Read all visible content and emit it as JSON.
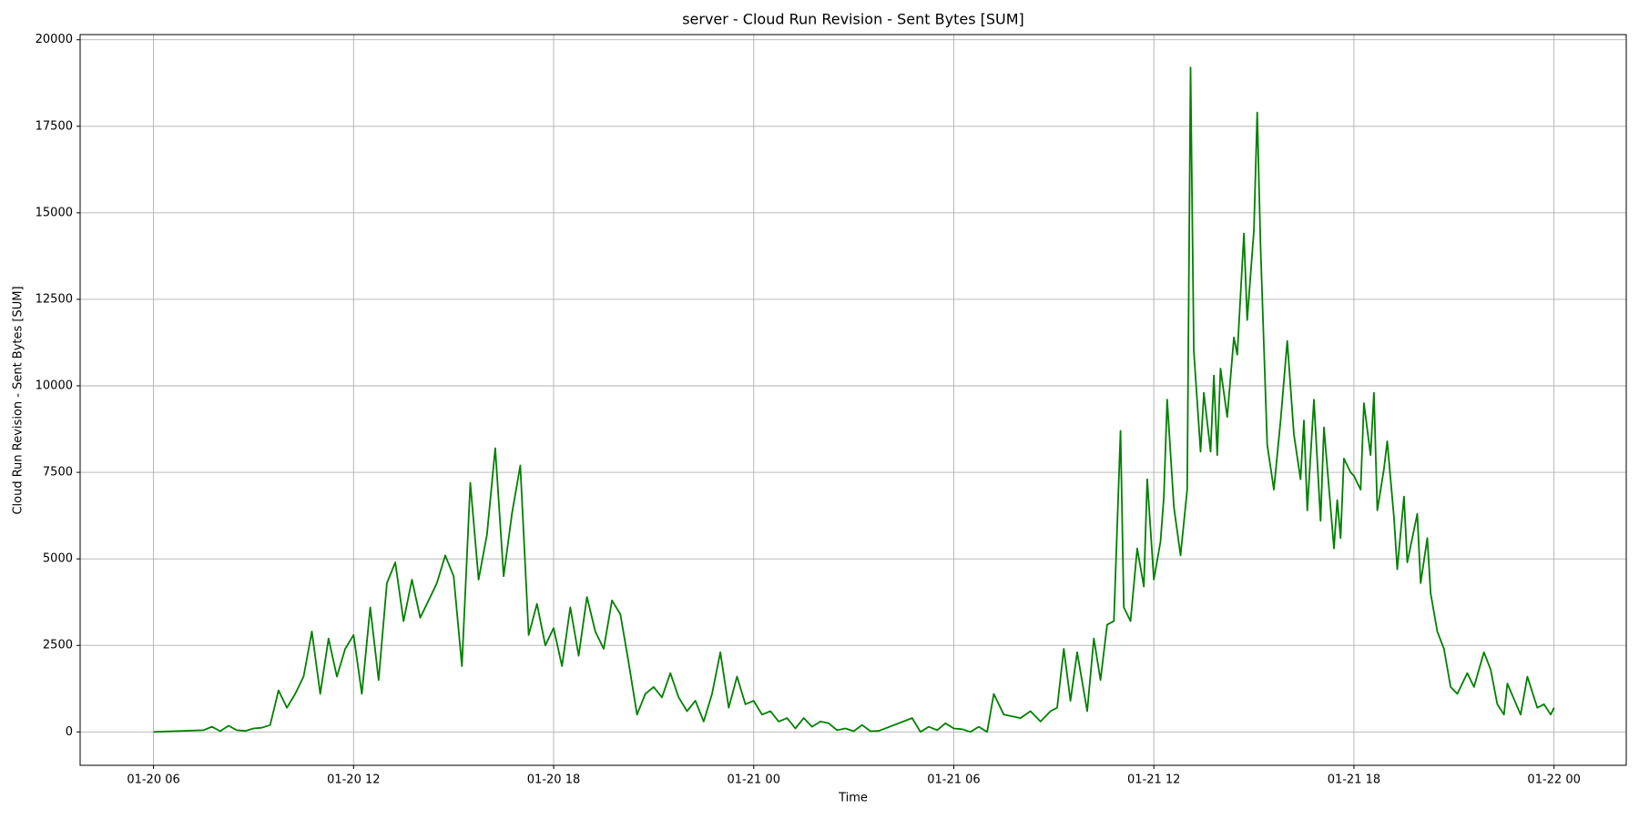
{
  "chart_data": {
    "type": "line",
    "title": "server - Cloud Run Revision - Sent Bytes [SUM]",
    "x_label": "Time",
    "y_label": "Cloud Run Revision - Sent Bytes [SUM]",
    "grid": true,
    "xlim": [
      "01-20 03:48",
      "01-22 02:10"
    ],
    "xticks": [
      {
        "value": "01-20 06:00",
        "label": "01-20 06"
      },
      {
        "value": "01-20 12:00",
        "label": "01-20 12"
      },
      {
        "value": "01-20 18:00",
        "label": "01-20 18"
      },
      {
        "value": "01-21 00:00",
        "label": "01-21 00"
      },
      {
        "value": "01-21 06:00",
        "label": "01-21 06"
      },
      {
        "value": "01-21 12:00",
        "label": "01-21 12"
      },
      {
        "value": "01-21 18:00",
        "label": "01-21 18"
      },
      {
        "value": "01-22 00:00",
        "label": "01-22 00"
      }
    ],
    "ylim": [
      -965,
      20150
    ],
    "yticks": [
      0,
      2500,
      5000,
      7500,
      10000,
      12500,
      15000,
      17500,
      20000
    ],
    "x": [
      "01-20 06:00",
      "01-20 07:30",
      "01-20 07:45",
      "01-20 08:00",
      "01-20 08:15",
      "01-20 08:30",
      "01-20 08:45",
      "01-20 09:00",
      "01-20 09:15",
      "01-20 09:30",
      "01-20 09:45",
      "01-20 10:00",
      "01-20 10:15",
      "01-20 10:30",
      "01-20 10:45",
      "01-20 11:00",
      "01-20 11:15",
      "01-20 11:30",
      "01-20 11:45",
      "01-20 12:00",
      "01-20 12:15",
      "01-20 12:30",
      "01-20 12:45",
      "01-20 13:00",
      "01-20 13:15",
      "01-20 13:30",
      "01-20 13:45",
      "01-20 14:00",
      "01-20 14:15",
      "01-20 14:30",
      "01-20 14:45",
      "01-20 15:00",
      "01-20 15:15",
      "01-20 15:30",
      "01-20 15:45",
      "01-20 16:00",
      "01-20 16:15",
      "01-20 16:30",
      "01-20 16:45",
      "01-20 17:00",
      "01-20 17:15",
      "01-20 17:30",
      "01-20 17:45",
      "01-20 18:00",
      "01-20 18:15",
      "01-20 18:30",
      "01-20 18:45",
      "01-20 19:00",
      "01-20 19:15",
      "01-20 19:30",
      "01-20 19:45",
      "01-20 20:00",
      "01-20 20:15",
      "01-20 20:30",
      "01-20 20:45",
      "01-20 21:00",
      "01-20 21:15",
      "01-20 21:30",
      "01-20 21:45",
      "01-20 22:00",
      "01-20 22:15",
      "01-20 22:30",
      "01-20 22:45",
      "01-20 23:00",
      "01-20 23:15",
      "01-20 23:30",
      "01-20 23:45",
      "01-21 00:00",
      "01-21 00:15",
      "01-21 00:30",
      "01-21 00:45",
      "01-21 01:00",
      "01-21 01:15",
      "01-21 01:30",
      "01-21 01:45",
      "01-21 02:00",
      "01-21 02:15",
      "01-21 02:30",
      "01-21 02:45",
      "01-21 03:00",
      "01-21 03:15",
      "01-21 03:30",
      "01-21 03:45",
      "01-21 04:45",
      "01-21 05:00",
      "01-21 05:15",
      "01-21 05:30",
      "01-21 05:45",
      "01-21 06:00",
      "01-21 06:15",
      "01-21 06:30",
      "01-21 06:45",
      "01-21 07:00",
      "01-21 07:12",
      "01-21 07:30",
      "01-21 08:00",
      "01-21 08:18",
      "01-21 08:36",
      "01-21 08:54",
      "01-21 09:06",
      "01-21 09:18",
      "01-21 09:30",
      "01-21 09:42",
      "01-21 10:00",
      "01-21 10:12",
      "01-21 10:24",
      "01-21 10:36",
      "01-21 10:48",
      "01-21 11:00",
      "01-21 11:06",
      "01-21 11:18",
      "01-21 11:30",
      "01-21 11:42",
      "01-21 11:48",
      "01-21 12:00",
      "01-21 12:12",
      "01-21 12:18",
      "01-21 12:24",
      "01-21 12:36",
      "01-21 12:48",
      "01-21 13:00",
      "01-21 13:06",
      "01-21 13:12",
      "01-21 13:24",
      "01-21 13:30",
      "01-21 13:42",
      "01-21 13:48",
      "01-21 13:54",
      "01-21 14:00",
      "01-21 14:12",
      "01-21 14:24",
      "01-21 14:30",
      "01-21 14:42",
      "01-21 14:48",
      "01-21 15:00",
      "01-21 15:06",
      "01-21 15:12",
      "01-21 15:24",
      "01-21 15:36",
      "01-21 15:48",
      "01-21 16:00",
      "01-21 16:12",
      "01-21 16:24",
      "01-21 16:30",
      "01-21 16:36",
      "01-21 16:48",
      "01-21 17:00",
      "01-21 17:06",
      "01-21 17:24",
      "01-21 17:30",
      "01-21 17:36",
      "01-21 17:42",
      "01-21 17:54",
      "01-21 18:00",
      "01-21 18:12",
      "01-21 18:18",
      "01-21 18:30",
      "01-21 18:36",
      "01-21 18:42",
      "01-21 18:54",
      "01-21 19:00",
      "01-21 19:12",
      "01-21 19:18",
      "01-21 19:30",
      "01-21 19:36",
      "01-21 19:54",
      "01-21 20:00",
      "01-21 20:12",
      "01-21 20:18",
      "01-21 20:30",
      "01-21 20:42",
      "01-21 20:54",
      "01-21 21:06",
      "01-21 21:24",
      "01-21 21:36",
      "01-21 21:54",
      "01-21 22:06",
      "01-21 22:18",
      "01-21 22:30",
      "01-21 22:36",
      "01-21 23:00",
      "01-21 23:12",
      "01-21 23:30",
      "01-21 23:42",
      "01-21 23:54",
      "01-22 00:00"
    ],
    "series": [
      {
        "name": "Cloud Run Revision - Sent Bytes [SUM]",
        "color": "#008000",
        "values": [
          0,
          50,
          150,
          20,
          180,
          50,
          30,
          100,
          120,
          200,
          1200,
          700,
          1100,
          1600,
          2900,
          1100,
          2700,
          1600,
          2400,
          2800,
          1100,
          3600,
          1500,
          4300,
          4900,
          3200,
          4400,
          3300,
          3800,
          4300,
          5100,
          4500,
          1900,
          7200,
          4400,
          5700,
          8200,
          4500,
          6300,
          7700,
          2800,
          3700,
          2500,
          3000,
          1900,
          3600,
          2200,
          3900,
          2900,
          2400,
          3800,
          3400,
          2000,
          500,
          1100,
          1300,
          1000,
          1700,
          1000,
          600,
          900,
          300,
          1100,
          2300,
          700,
          1600,
          800,
          900,
          500,
          600,
          300,
          400,
          100,
          400,
          150,
          300,
          250,
          50,
          100,
          20,
          200,
          20,
          30,
          400,
          0,
          150,
          50,
          250,
          100,
          80,
          0,
          150,
          0,
          1100,
          500,
          400,
          600,
          300,
          600,
          700,
          2400,
          900,
          2300,
          600,
          2700,
          1500,
          3100,
          3200,
          8700,
          3600,
          3200,
          5300,
          4200,
          7300,
          4400,
          5500,
          6800,
          9600,
          6500,
          5100,
          7000,
          19200,
          11000,
          8100,
          9800,
          8100,
          10300,
          8000,
          10500,
          9100,
          11400,
          10900,
          14400,
          11900,
          14500,
          17900,
          14000,
          8300,
          7000,
          9000,
          11300,
          8600,
          7300,
          9000,
          6400,
          9600,
          6100,
          8800,
          5300,
          6700,
          5600,
          7900,
          7500,
          7400,
          7000,
          9500,
          8000,
          9800,
          6400,
          7600,
          8400,
          6200,
          4700,
          6800,
          4900,
          6300,
          4300,
          5600,
          4000,
          2900,
          2400,
          1300,
          1100,
          1700,
          1300,
          2300,
          1800,
          800,
          500,
          1400,
          500,
          1600,
          700,
          800,
          500,
          700
        ]
      }
    ]
  }
}
